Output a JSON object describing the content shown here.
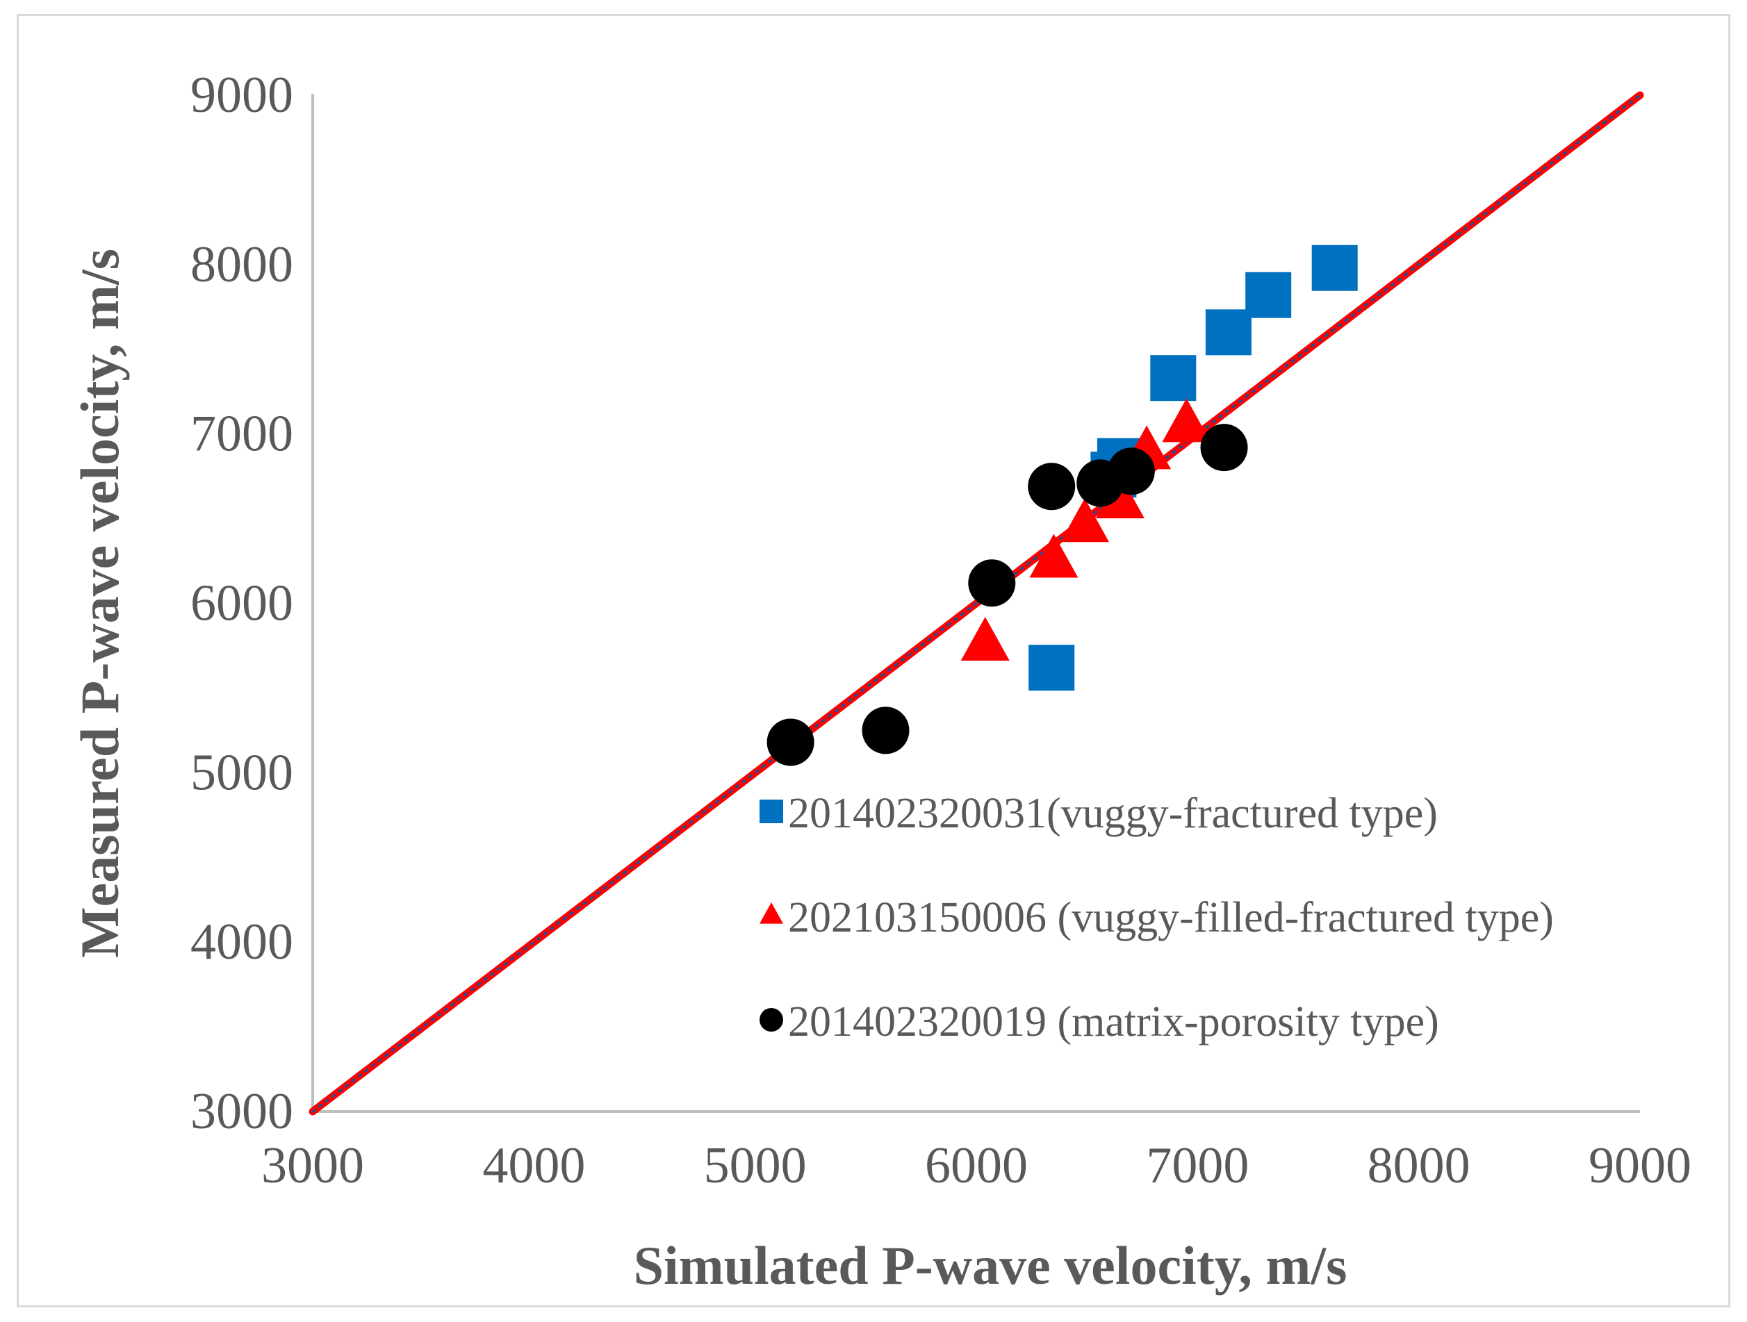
{
  "chart_data": {
    "type": "scatter",
    "title": "",
    "xlabel": "Simulated P-wave velocity, m/s",
    "ylabel": "Measured P-wave velocity, m/s",
    "xlim": [
      3000,
      9000
    ],
    "ylim": [
      3000,
      9000
    ],
    "xticks": [
      "3000",
      "4000",
      "5000",
      "6000",
      "7000",
      "8000",
      "9000"
    ],
    "yticks": [
      "3000",
      "4000",
      "5000",
      "6000",
      "7000",
      "8000",
      "9000"
    ],
    "grid": false,
    "legend_position": "lower-right",
    "reference_line": {
      "name": "1:1 line",
      "x": [
        3000,
        9000
      ],
      "y": [
        3000,
        9000
      ],
      "color": "#ff0000",
      "overlay_color": "#2f4a8a"
    },
    "series": [
      {
        "name": "201402320031(vuggy-fractured type)",
        "marker": "square",
        "color": "#0070c0",
        "points": [
          [
            6340,
            5620
          ],
          [
            6620,
            6760
          ],
          [
            6650,
            6840
          ],
          [
            6890,
            7330
          ],
          [
            7140,
            7600
          ],
          [
            7320,
            7820
          ],
          [
            7620,
            7980
          ]
        ]
      },
      {
        "name": "202103150006 (vuggy-filled-fractured type)",
        "marker": "triangle",
        "color": "#ff0000",
        "points": [
          [
            6040,
            5760
          ],
          [
            6350,
            6250
          ],
          [
            6490,
            6460
          ],
          [
            6650,
            6600
          ],
          [
            6770,
            6890
          ],
          [
            6950,
            7050
          ]
        ]
      },
      {
        "name": "201402320019 (matrix-porosity type)",
        "marker": "circle",
        "color": "#000000",
        "points": [
          [
            5160,
            5180
          ],
          [
            5590,
            5250
          ],
          [
            6070,
            6120
          ],
          [
            6340,
            6690
          ],
          [
            6560,
            6710
          ],
          [
            6700,
            6780
          ],
          [
            7120,
            6920
          ]
        ]
      }
    ]
  }
}
